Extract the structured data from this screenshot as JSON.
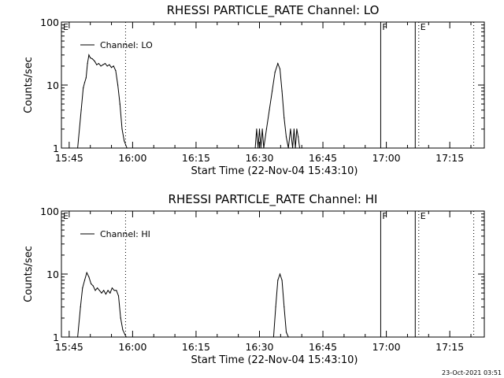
{
  "colors": {
    "background": "#ffffff",
    "foreground": "#000000"
  },
  "timestamp": "23-Oct-2021 03:51",
  "chart_data": [
    {
      "type": "line",
      "title": "RHESSI PARTICLE_RATE Channel: LO",
      "xlabel": "Start Time (22-Nov-04 15:43:10)",
      "ylabel": "Counts/sec",
      "yscale": "log",
      "ylim": [
        1,
        100
      ],
      "xlim_minutes": [
        0,
        100
      ],
      "x_ticks": [
        "15:45",
        "16:00",
        "16:15",
        "16:30",
        "16:45",
        "17:00",
        "17:15"
      ],
      "y_ticks": [
        "1",
        "10",
        "100"
      ],
      "legend_label": "Channel: LO",
      "legend_position": "top-left",
      "markers": [
        {
          "label": "E",
          "time": "15:43:10",
          "style": "none"
        },
        {
          "label": "",
          "time": "15:58:20",
          "style": "dotted"
        },
        {
          "label": "F",
          "time": "16:58:40",
          "style": "solid"
        },
        {
          "label": "",
          "time": "17:06:50",
          "style": "solid"
        },
        {
          "label": "E",
          "time": "17:07:40",
          "style": "dotted"
        },
        {
          "label": "",
          "time": "17:20:40",
          "style": "dotted"
        }
      ],
      "series": [
        {
          "name": "Channel: LO",
          "x": [
            "15:47:00",
            "15:47:50",
            "15:48:20",
            "15:48:40",
            "15:49:00",
            "15:49:20",
            "15:49:40",
            "15:50:00",
            "15:50:30",
            "15:51:00",
            "15:51:30",
            "15:52:00",
            "15:52:30",
            "15:53:00",
            "15:53:30",
            "15:54:00",
            "15:54:30",
            "15:55:00",
            "15:55:30",
            "15:56:00",
            "15:56:30",
            "15:57:00",
            "15:57:30",
            "15:58:00",
            "15:58:40",
            "16:29:00",
            "16:29:20",
            "16:29:40",
            "16:30:00",
            "16:30:20",
            "16:30:40",
            "16:31:00",
            "16:31:40",
            "16:32:20",
            "16:33:00",
            "16:33:40",
            "16:34:20",
            "16:34:50",
            "16:35:20",
            "16:35:50",
            "16:36:20",
            "16:36:50",
            "16:37:20",
            "16:37:50",
            "16:38:10",
            "16:38:30",
            "16:38:50",
            "16:39:10",
            "16:39:30",
            "16:39:50",
            "16:40:10"
          ],
          "y": [
            1.0,
            4.0,
            9.0,
            11.0,
            13.0,
            22.0,
            30.0,
            27.0,
            26.0,
            24.0,
            21.0,
            22.0,
            20.0,
            21.0,
            22.0,
            20.0,
            21.0,
            19.0,
            20.0,
            17.0,
            10.0,
            5.0,
            2.0,
            1.3,
            1.0,
            1.0,
            2.0,
            1.0,
            2.0,
            1.0,
            2.0,
            1.0,
            2.0,
            4.0,
            8.0,
            16.0,
            22.0,
            18.0,
            8.0,
            3.0,
            1.5,
            1.0,
            2.0,
            1.0,
            2.0,
            1.0,
            2.0,
            1.5,
            1.0,
            1.0,
            1.0
          ]
        }
      ]
    },
    {
      "type": "line",
      "title": "RHESSI PARTICLE_RATE Channel: HI",
      "xlabel": "Start Time (22-Nov-04 15:43:10)",
      "ylabel": "Counts/sec",
      "yscale": "log",
      "ylim": [
        1,
        100
      ],
      "xlim_minutes": [
        0,
        100
      ],
      "x_ticks": [
        "15:45",
        "16:00",
        "16:15",
        "16:30",
        "16:45",
        "17:00",
        "17:15"
      ],
      "y_ticks": [
        "1",
        "10",
        "100"
      ],
      "legend_label": "Channel: HI",
      "legend_position": "top-left",
      "markers": [
        {
          "label": "E",
          "time": "15:43:10",
          "style": "none"
        },
        {
          "label": "",
          "time": "15:58:20",
          "style": "dotted"
        },
        {
          "label": "F",
          "time": "16:58:40",
          "style": "solid"
        },
        {
          "label": "",
          "time": "17:06:50",
          "style": "solid"
        },
        {
          "label": "E",
          "time": "17:07:40",
          "style": "dotted"
        },
        {
          "label": "",
          "time": "17:20:40",
          "style": "dotted"
        }
      ],
      "series": [
        {
          "name": "Channel: HI",
          "x": [
            "15:47:00",
            "15:47:40",
            "15:48:10",
            "15:48:40",
            "15:49:10",
            "15:49:40",
            "15:50:10",
            "15:50:40",
            "15:51:10",
            "15:51:40",
            "15:52:10",
            "15:52:40",
            "15:53:10",
            "15:53:40",
            "15:54:10",
            "15:54:40",
            "15:55:10",
            "15:55:40",
            "15:56:10",
            "15:56:40",
            "15:57:10",
            "15:57:40",
            "15:58:10",
            "15:58:30",
            "16:33:20",
            "16:33:50",
            "16:34:20",
            "16:34:50",
            "16:35:20",
            "16:35:50",
            "16:36:20",
            "16:36:50"
          ],
          "y": [
            1.0,
            3.0,
            6.0,
            8.0,
            10.5,
            9.0,
            7.0,
            6.5,
            5.5,
            6.0,
            5.5,
            5.0,
            5.5,
            4.8,
            5.5,
            5.0,
            6.0,
            5.5,
            5.5,
            4.5,
            2.0,
            1.3,
            1.1,
            1.0,
            1.0,
            3.0,
            8.0,
            10.0,
            8.0,
            3.0,
            1.2,
            1.0
          ]
        }
      ]
    }
  ]
}
